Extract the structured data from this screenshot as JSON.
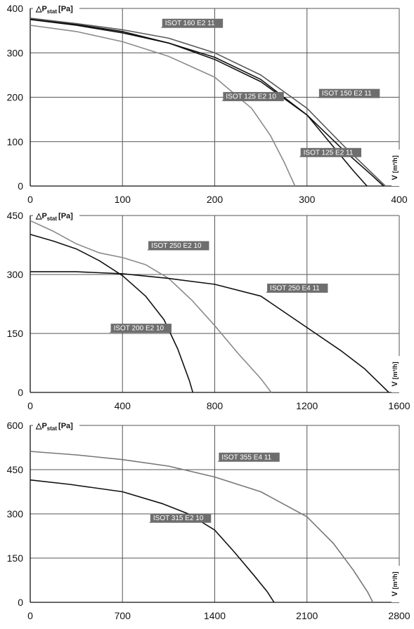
{
  "chart_data": [
    {
      "type": "line",
      "ylabel": "△P",
      "ylabel_sub": "stat",
      "ylabel_unit": "[Pa]",
      "xlabel": "V",
      "xlabel_unit": "[m³/h]",
      "xlim": [
        0,
        400
      ],
      "ylim": [
        0,
        400
      ],
      "xticks": [
        0,
        100,
        200,
        300,
        400
      ],
      "yticks": [
        0,
        100,
        200,
        300,
        400
      ],
      "grid": true,
      "series": [
        {
          "name": "ISOT 125 E2 10",
          "color": "#8a8a8a",
          "points": [
            [
              0,
              362
            ],
            [
              50,
              348
            ],
            [
              100,
              325
            ],
            [
              150,
              292
            ],
            [
              200,
              245
            ],
            [
              240,
              175
            ],
            [
              260,
              115
            ],
            [
              275,
              55
            ],
            [
              287,
              0
            ]
          ]
        },
        {
          "name": "ISOT 125 E2 11",
          "color": "#111111",
          "points": [
            [
              0,
              375
            ],
            [
              50,
              362
            ],
            [
              100,
              345
            ],
            [
              150,
              322
            ],
            [
              200,
              290
            ],
            [
              250,
              240
            ],
            [
              300,
              160
            ],
            [
              330,
              85
            ],
            [
              350,
              35
            ],
            [
              365,
              0
            ]
          ]
        },
        {
          "name": "ISOT 150 E2 11",
          "color": "#111111",
          "points": [
            [
              0,
              376
            ],
            [
              50,
              364
            ],
            [
              100,
              348
            ],
            [
              150,
              322
            ],
            [
              200,
              285
            ],
            [
              250,
              235
            ],
            [
              300,
              160
            ],
            [
              340,
              80
            ],
            [
              370,
              25
            ],
            [
              383,
              0
            ]
          ]
        },
        {
          "name": "ISOT 160 E2 11",
          "color": "#5a5a5a",
          "points": [
            [
              0,
              378
            ],
            [
              50,
              366
            ],
            [
              100,
              352
            ],
            [
              150,
              333
            ],
            [
              200,
              300
            ],
            [
              250,
              250
            ],
            [
              300,
              175
            ],
            [
              340,
              90
            ],
            [
              370,
              30
            ],
            [
              385,
              0
            ]
          ]
        }
      ],
      "labels": [
        {
          "text": "ISOT 160 E2 11",
          "x": 140,
          "y": 353
        },
        {
          "text": "ISOT 125 E2 10",
          "x": 206,
          "y": 188
        },
        {
          "text": "ISOT 150 E2 11",
          "x": 310,
          "y": 195
        },
        {
          "text": "ISOT 125 E2 11",
          "x": 290,
          "y": 62
        }
      ]
    },
    {
      "type": "line",
      "ylabel": "△P",
      "ylabel_sub": "stat",
      "ylabel_unit": "[Pa]",
      "xlabel": "V",
      "xlabel_unit": "[m³/h]",
      "xlim": [
        0,
        1600
      ],
      "ylim": [
        0,
        450
      ],
      "xticks": [
        0,
        400,
        800,
        1200,
        1600
      ],
      "yticks": [
        0,
        150,
        300,
        450
      ],
      "grid": true,
      "series": [
        {
          "name": "ISOT 200 E2 10",
          "color": "#111111",
          "points": [
            [
              0,
              402
            ],
            [
              100,
              385
            ],
            [
              200,
              365
            ],
            [
              300,
              335
            ],
            [
              400,
              297
            ],
            [
              500,
              245
            ],
            [
              580,
              185
            ],
            [
              640,
              110
            ],
            [
              690,
              30
            ],
            [
              705,
              0
            ]
          ]
        },
        {
          "name": "ISOT 250 E2 10",
          "color": "#8a8a8a",
          "points": [
            [
              0,
              437
            ],
            [
              100,
              410
            ],
            [
              200,
              378
            ],
            [
              300,
              355
            ],
            [
              400,
              343
            ],
            [
              500,
              325
            ],
            [
              600,
              290
            ],
            [
              700,
              235
            ],
            [
              800,
              170
            ],
            [
              900,
              100
            ],
            [
              1000,
              35
            ],
            [
              1045,
              0
            ]
          ]
        },
        {
          "name": "ISOT 250 E4 11",
          "color": "#111111",
          "points": [
            [
              0,
              307
            ],
            [
              200,
              307
            ],
            [
              400,
              302
            ],
            [
              600,
              290
            ],
            [
              800,
              275
            ],
            [
              1000,
              245
            ],
            [
              1200,
              165
            ],
            [
              1350,
              105
            ],
            [
              1450,
              60
            ],
            [
              1520,
              20
            ],
            [
              1555,
              0
            ]
          ]
        }
      ],
      "labels": [
        {
          "text": "ISOT 250 E2 10",
          "x": 500,
          "y": 358
        },
        {
          "text": "ISOT 250 E4 11",
          "x": 1015,
          "y": 250
        },
        {
          "text": "ISOT 200 E2 10",
          "x": 337,
          "y": 148
        }
      ]
    },
    {
      "type": "line",
      "ylabel": "△P",
      "ylabel_sub": "stat",
      "ylabel_unit": "[Pa]",
      "xlabel": "V",
      "xlabel_unit": "[m³/h]",
      "xlim": [
        0,
        2800
      ],
      "ylim": [
        0,
        600
      ],
      "xticks": [
        0,
        700,
        1400,
        2100,
        2800
      ],
      "yticks": [
        0,
        150,
        300,
        450,
        600
      ],
      "grid": true,
      "series": [
        {
          "name": "ISOT 315 E2 10",
          "color": "#111111",
          "points": [
            [
              0,
              415
            ],
            [
              300,
              400
            ],
            [
              700,
              375
            ],
            [
              1000,
              335
            ],
            [
              1200,
              300
            ],
            [
              1400,
              245
            ],
            [
              1550,
              170
            ],
            [
              1700,
              90
            ],
            [
              1800,
              35
            ],
            [
              1850,
              0
            ]
          ]
        },
        {
          "name": "ISOT 355 E4 11",
          "color": "#777777",
          "points": [
            [
              0,
              512
            ],
            [
              350,
              500
            ],
            [
              700,
              484
            ],
            [
              1050,
              462
            ],
            [
              1400,
              425
            ],
            [
              1750,
              375
            ],
            [
              2100,
              290
            ],
            [
              2300,
              200
            ],
            [
              2450,
              110
            ],
            [
              2560,
              35
            ],
            [
              2600,
              0
            ]
          ]
        }
      ],
      "labels": [
        {
          "text": "ISOT 355 E4 11",
          "x": 1410,
          "y": 472
        },
        {
          "text": "ISOT 315 E2 10",
          "x": 890,
          "y": 265
        }
      ]
    }
  ]
}
